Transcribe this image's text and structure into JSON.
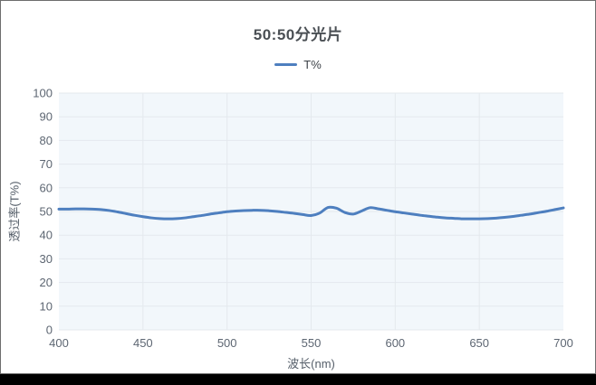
{
  "window": {
    "background": "#ffffff",
    "border_color": "#6d6d6d",
    "bottom_bar_color": "#000000"
  },
  "chart_data": {
    "type": "line",
    "title": "50:50分光片",
    "xlabel": "波长(nm)",
    "ylabel": "透过率(T%)",
    "xlim": [
      400,
      700
    ],
    "ylim": [
      0,
      100
    ],
    "x_ticks": [
      400,
      450,
      500,
      550,
      600,
      650,
      700
    ],
    "y_ticks": [
      0,
      10,
      20,
      30,
      40,
      50,
      60,
      70,
      80,
      90,
      100
    ],
    "grid": true,
    "legend_position": "top-center",
    "plot_background": "#f2f7fb",
    "grid_color": "#e4e9ee",
    "tick_label_color": "#5d6672",
    "title_color": "#4a4f54",
    "series": [
      {
        "name": "T%",
        "color": "#4e7fbf",
        "line_width": 3,
        "smooth": true,
        "x": [
          400,
          405,
          410,
          415,
          420,
          425,
          430,
          435,
          440,
          445,
          450,
          455,
          460,
          465,
          470,
          475,
          480,
          485,
          490,
          495,
          500,
          505,
          510,
          515,
          520,
          525,
          530,
          535,
          540,
          545,
          550,
          555,
          560,
          565,
          570,
          575,
          580,
          585,
          590,
          595,
          600,
          605,
          610,
          615,
          620,
          625,
          630,
          635,
          640,
          645,
          650,
          655,
          660,
          665,
          670,
          675,
          680,
          685,
          690,
          695,
          700
        ],
        "values": [
          51.0,
          51.0,
          51.1,
          51.1,
          51.0,
          50.8,
          50.4,
          49.8,
          49.1,
          48.4,
          47.8,
          47.3,
          47.0,
          46.9,
          47.0,
          47.3,
          47.8,
          48.3,
          48.9,
          49.4,
          49.9,
          50.2,
          50.4,
          50.5,
          50.5,
          50.3,
          50.0,
          49.6,
          49.2,
          48.7,
          48.3,
          49.3,
          51.7,
          51.4,
          49.6,
          48.9,
          50.2,
          51.6,
          51.1,
          50.5,
          49.9,
          49.4,
          48.9,
          48.4,
          48.0,
          47.6,
          47.3,
          47.1,
          46.9,
          46.9,
          46.9,
          47.0,
          47.2,
          47.5,
          47.9,
          48.4,
          48.9,
          49.5,
          50.1,
          50.8,
          51.5
        ]
      }
    ]
  }
}
